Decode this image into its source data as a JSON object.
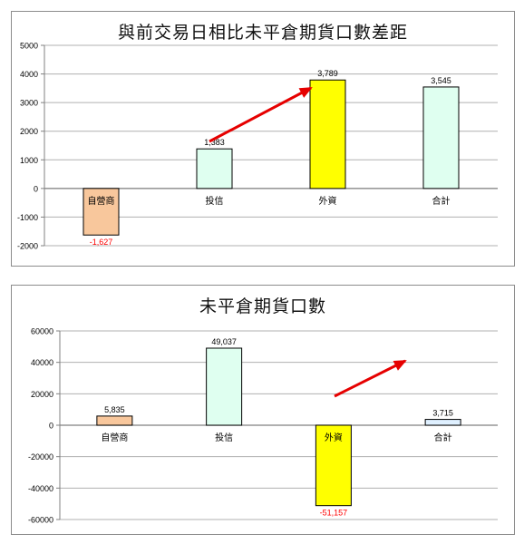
{
  "chart_data": [
    {
      "type": "bar",
      "title": "與前交易日相比未平倉期貨口數差距",
      "categories": [
        "自營商",
        "投信",
        "外資",
        "合計"
      ],
      "values": [
        -1627,
        1383,
        3789,
        3545
      ],
      "value_labels": [
        "-1,627",
        "1,383",
        "3,789",
        "3,545"
      ],
      "bar_colors": [
        "#f8c79c",
        "#dffff0",
        "#ffff00",
        "#dffff0"
      ],
      "negative_label_color": "#ff0000",
      "ylim": [
        -2000,
        5000
      ],
      "yticks": [
        "5000",
        "4000",
        "3000",
        "2000",
        "1000",
        "0",
        "-1000",
        "-2000"
      ],
      "ytick_values": [
        5000,
        4000,
        3000,
        2000,
        1000,
        0,
        -1000,
        -2000
      ],
      "grid": true,
      "arrow_color": "#e60000"
    },
    {
      "type": "bar",
      "title": "未平倉期貨口數",
      "categories": [
        "自營商",
        "投信",
        "外資",
        "合計"
      ],
      "values": [
        5835,
        49037,
        -51157,
        3715
      ],
      "value_labels": [
        "5,835",
        "49,037",
        "-51,157",
        "3,715"
      ],
      "bar_colors": [
        "#f8c79c",
        "#dffff0",
        "#ffff00",
        "#dff0ff"
      ],
      "negative_label_color": "#ff0000",
      "ylim": [
        -60000,
        60000
      ],
      "yticks": [
        "60000",
        "40000",
        "20000",
        "0",
        "-20000",
        "-40000",
        "-60000"
      ],
      "ytick_values": [
        60000,
        40000,
        20000,
        0,
        -20000,
        -40000,
        -60000
      ],
      "grid": true,
      "arrow_color": "#e60000"
    }
  ]
}
